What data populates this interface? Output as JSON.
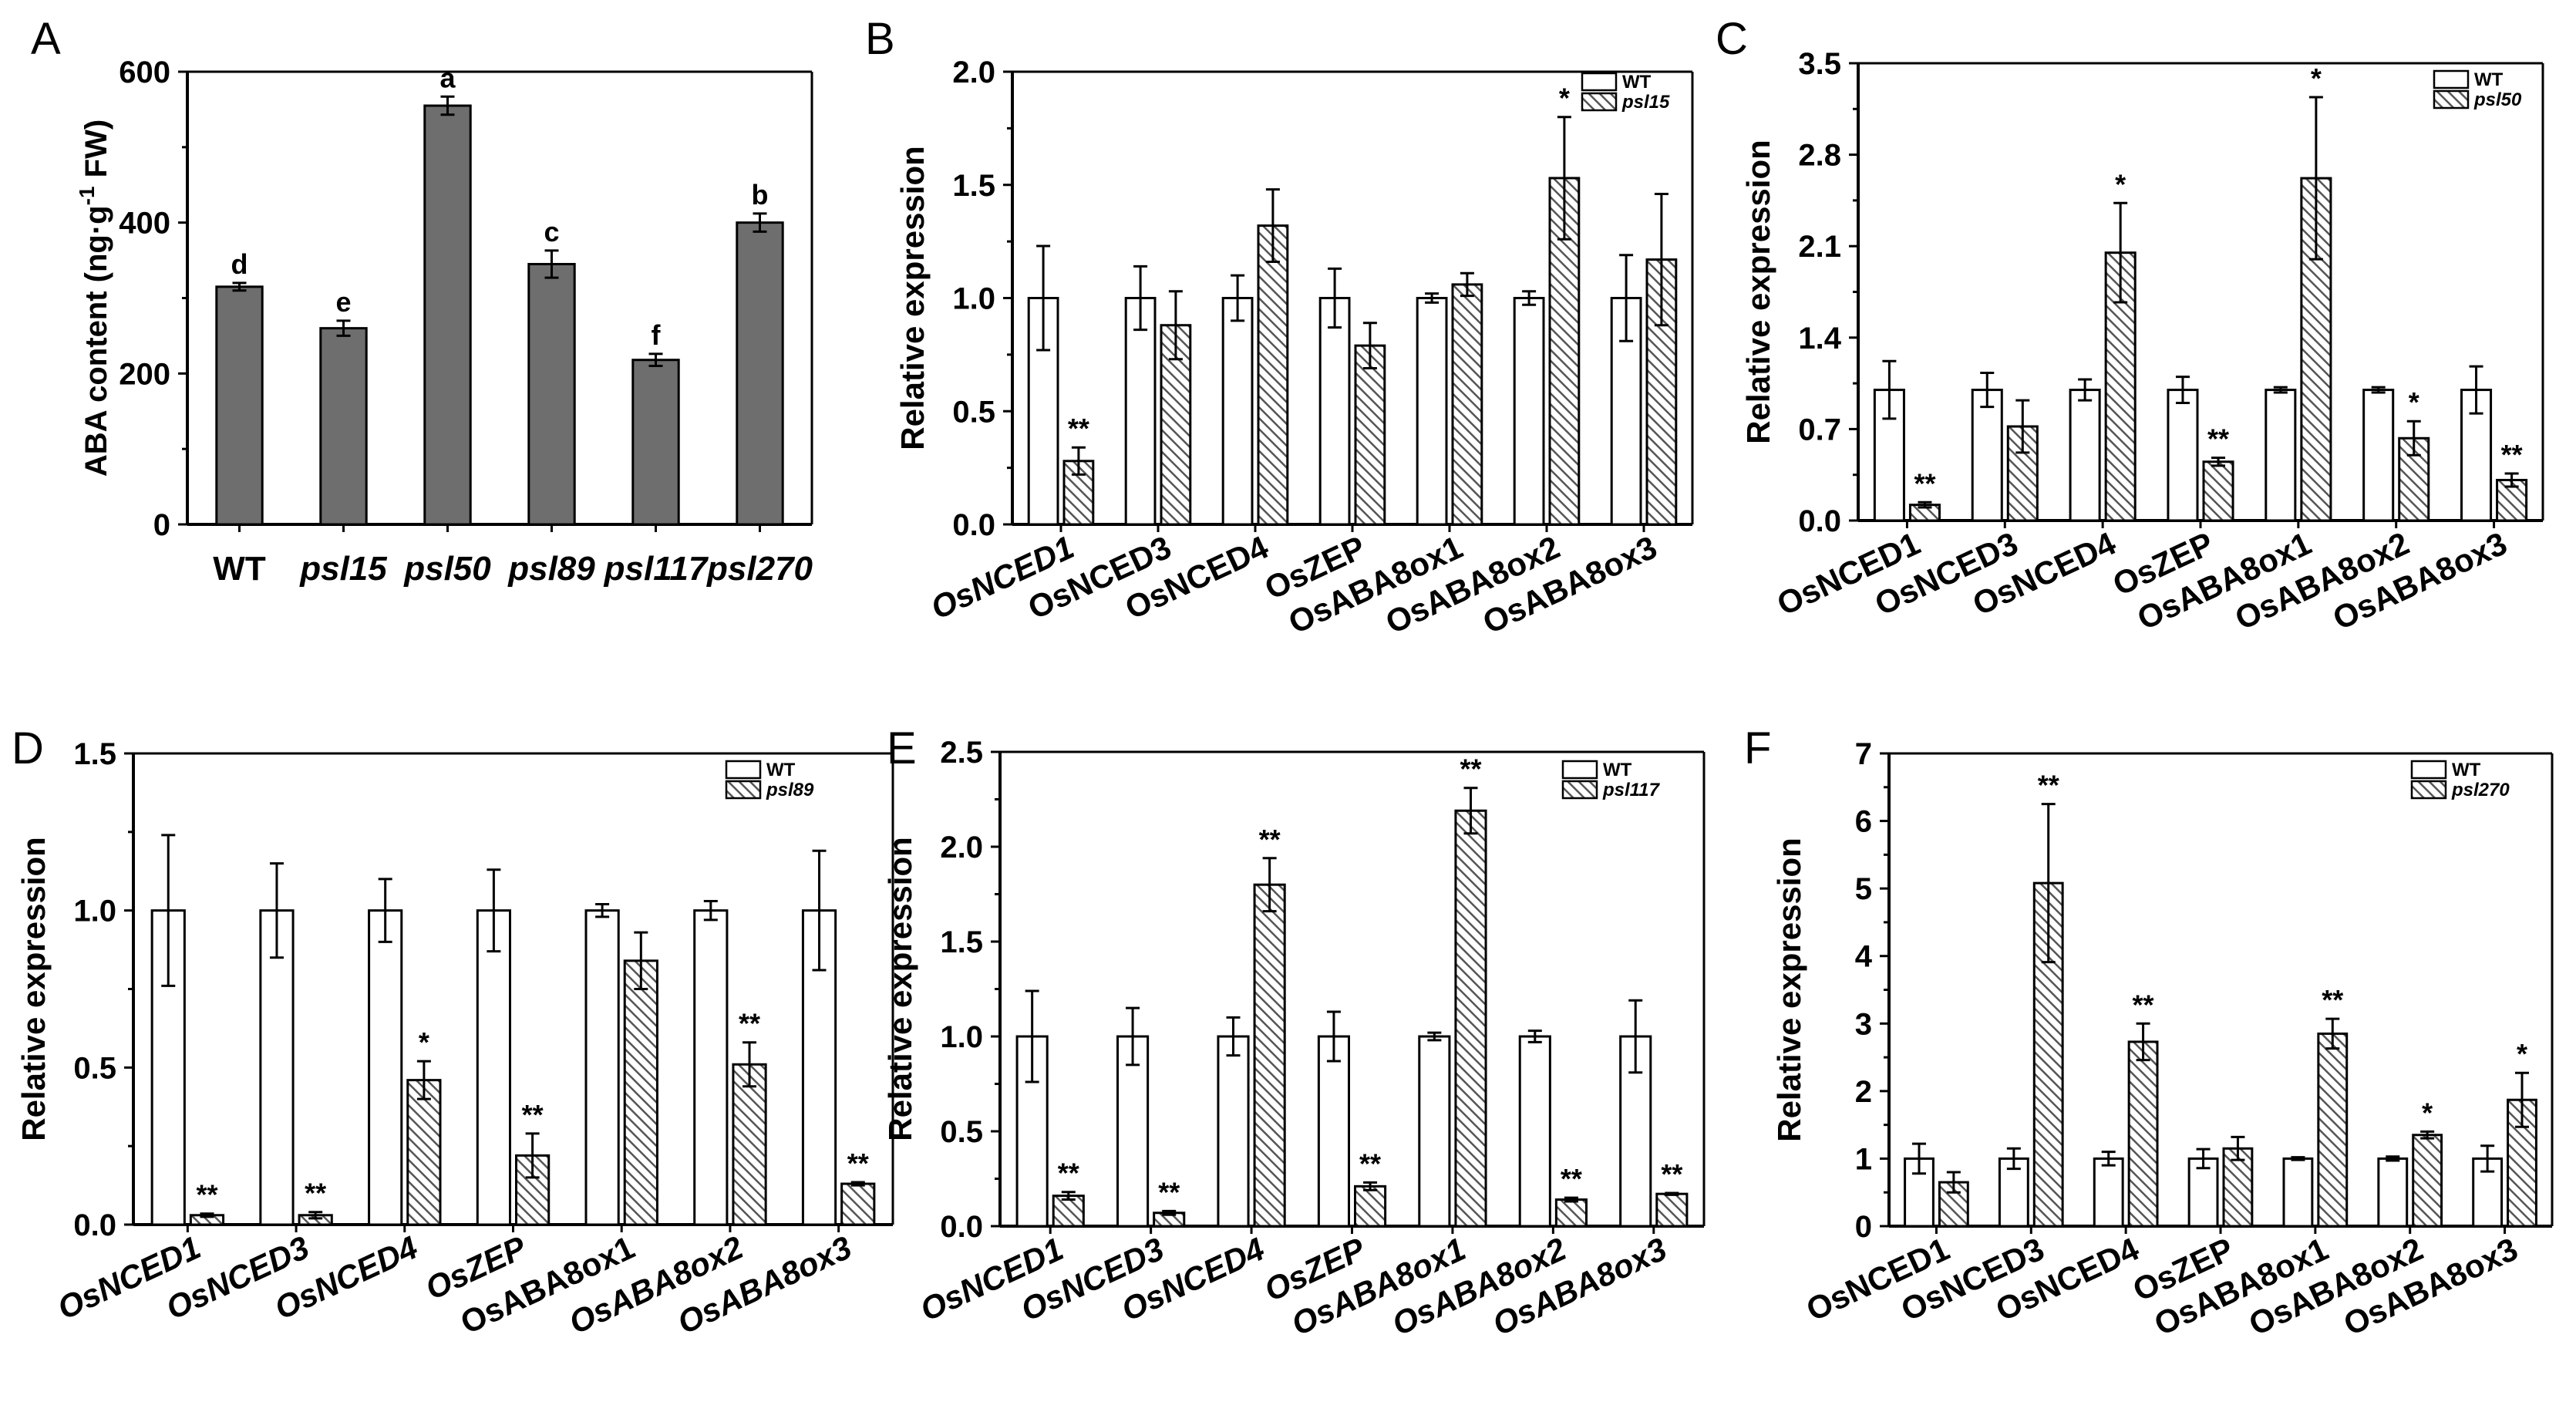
{
  "colors": {
    "axis": "#000000",
    "bar_gray": "#6e6e6e",
    "bar_white": "#ffffff",
    "hatch": "#555555"
  },
  "chart_data": [
    {
      "panel": "A",
      "type": "bar",
      "categories": [
        "WT",
        "psl15",
        "psl50",
        "psl89",
        "psl117",
        "psl270"
      ],
      "categories_italic": [
        false,
        true,
        true,
        true,
        true,
        true
      ],
      "series": [
        {
          "values": [
            315,
            260,
            555,
            345,
            218,
            400
          ],
          "errors": [
            5,
            10,
            12,
            18,
            8,
            12
          ]
        }
      ],
      "annotations": [
        "d",
        "e",
        "a",
        "c",
        "f",
        "b"
      ],
      "ylabel": "ABA content (ng·g-1 FW)",
      "ylim": [
        0,
        600
      ],
      "yticks": [
        "0",
        "200",
        "400",
        "600"
      ],
      "legend": null
    },
    {
      "panel": "B",
      "type": "bar",
      "categories": [
        "OsNCED1",
        "OsNCED3",
        "OsNCED4",
        "OsZEP",
        "OsABA8ox1",
        "OsABA8ox2",
        "OsABA8ox3"
      ],
      "categories_italic": [
        true,
        false,
        false,
        false,
        false,
        false,
        false
      ],
      "series": [
        {
          "name": "WT",
          "values": [
            1.0,
            1.0,
            1.0,
            1.0,
            1.0,
            1.0,
            1.0
          ],
          "errors": [
            0.23,
            0.14,
            0.1,
            0.13,
            0.02,
            0.03,
            0.19
          ]
        },
        {
          "name": "psl15",
          "values": [
            0.28,
            0.88,
            1.32,
            0.79,
            1.06,
            1.53,
            1.17
          ],
          "errors": [
            0.06,
            0.15,
            0.16,
            0.1,
            0.05,
            0.27,
            0.29
          ]
        }
      ],
      "annotations": [
        "**",
        "",
        "",
        "",
        "",
        "*",
        ""
      ],
      "ylabel": "Relative expression",
      "ylim": [
        0,
        2.0
      ],
      "yticks": [
        "0.0",
        "0.5",
        "1.0",
        "1.5",
        "2.0"
      ],
      "legend": "top-right"
    },
    {
      "panel": "C",
      "type": "bar",
      "categories": [
        "OsNCED1",
        "OsNCED3",
        "OsNCED4",
        "OsZEP",
        "OsABA8ox1",
        "OsABA8ox2",
        "OsABA8ox3"
      ],
      "categories_italic": [
        false,
        false,
        false,
        false,
        false,
        false,
        false
      ],
      "series": [
        {
          "name": "WT",
          "values": [
            1.0,
            1.0,
            1.0,
            1.0,
            1.0,
            1.0,
            1.0
          ],
          "errors": [
            0.22,
            0.13,
            0.08,
            0.1,
            0.02,
            0.02,
            0.18
          ]
        },
        {
          "name": "psl50",
          "values": [
            0.12,
            0.72,
            2.05,
            0.45,
            2.62,
            0.63,
            0.31
          ],
          "errors": [
            0.02,
            0.2,
            0.38,
            0.03,
            0.62,
            0.13,
            0.05
          ]
        }
      ],
      "annotations": [
        "**",
        "",
        "*",
        "**",
        "*",
        "*",
        "**"
      ],
      "ylabel": "Relative expression",
      "ylim": [
        0,
        3.5
      ],
      "yticks": [
        "0.0",
        "0.7",
        "1.4",
        "2.1",
        "2.8",
        "3.5"
      ],
      "legend": "top-right"
    },
    {
      "panel": "D",
      "type": "bar",
      "categories": [
        "OsNCED1",
        "OsNCED3",
        "OsNCED4",
        "OsZEP",
        "OsABA8ox1",
        "OsABA8ox2",
        "OsABA8ox3"
      ],
      "categories_italic": [
        true,
        true,
        true,
        true,
        false,
        true,
        true
      ],
      "series": [
        {
          "name": "WT",
          "values": [
            1.0,
            1.0,
            1.0,
            1.0,
            1.0,
            1.0,
            1.0
          ],
          "errors": [
            0.24,
            0.15,
            0.1,
            0.13,
            0.02,
            0.03,
            0.19
          ]
        },
        {
          "name": "psl89",
          "values": [
            0.03,
            0.03,
            0.46,
            0.22,
            0.84,
            0.51,
            0.13
          ],
          "errors": [
            0.005,
            0.01,
            0.06,
            0.07,
            0.09,
            0.07,
            0.005
          ]
        }
      ],
      "annotations": [
        "**",
        "**",
        "*",
        "**",
        "",
        "**",
        "**"
      ],
      "ylabel": "Relative expression",
      "ylim": [
        0,
        1.5
      ],
      "yticks": [
        "0.0",
        "0.5",
        "1.0",
        "1.5"
      ],
      "legend": "top-right"
    },
    {
      "panel": "E",
      "type": "bar",
      "categories": [
        "OsNCED1",
        "OsNCED3",
        "OsNCED4",
        "OsZEP",
        "OsABA8ox1",
        "OsABA8ox2",
        "OsABA8ox3"
      ],
      "categories_italic": [
        true,
        true,
        true,
        true,
        true,
        true,
        true
      ],
      "series": [
        {
          "name": "WT",
          "values": [
            1.0,
            1.0,
            1.0,
            1.0,
            1.0,
            1.0,
            1.0
          ],
          "errors": [
            0.24,
            0.15,
            0.1,
            0.13,
            0.02,
            0.03,
            0.19
          ]
        },
        {
          "name": "psl117",
          "values": [
            0.16,
            0.07,
            1.8,
            0.21,
            2.19,
            0.14,
            0.17
          ],
          "errors": [
            0.02,
            0.01,
            0.14,
            0.02,
            0.12,
            0.01,
            0.005
          ]
        }
      ],
      "annotations": [
        "**",
        "**",
        "**",
        "**",
        "**",
        "**",
        "**"
      ],
      "ylabel": "Relative expression",
      "ylim": [
        0,
        2.5
      ],
      "yticks": [
        "0.0",
        "0.5",
        "1.0",
        "1.5",
        "2.0",
        "2.5"
      ],
      "legend": "top-right"
    },
    {
      "panel": "F",
      "type": "bar",
      "categories": [
        "OsNCED1",
        "OsNCED3",
        "OsNCED4",
        "OsZEP",
        "OsABA8ox1",
        "OsABA8ox2",
        "OsABA8ox3"
      ],
      "categories_italic": [
        false,
        false,
        false,
        false,
        false,
        false,
        false
      ],
      "series": [
        {
          "name": "WT",
          "values": [
            1.0,
            1.0,
            1.0,
            1.0,
            1.0,
            1.0,
            1.0
          ],
          "errors": [
            0.22,
            0.15,
            0.1,
            0.14,
            0.02,
            0.03,
            0.19
          ]
        },
        {
          "name": "psl270",
          "values": [
            0.65,
            5.08,
            2.73,
            1.15,
            2.85,
            1.35,
            1.87
          ],
          "errors": [
            0.15,
            1.17,
            0.27,
            0.17,
            0.22,
            0.05,
            0.4
          ]
        }
      ],
      "annotations": [
        "",
        "**",
        "**",
        "",
        "**",
        "*",
        "*"
      ],
      "ylabel": "Relative expression",
      "ylim": [
        0,
        7
      ],
      "yticks": [
        "0",
        "1",
        "2",
        "3",
        "4",
        "5",
        "6",
        "7"
      ],
      "legend": "top-right"
    }
  ]
}
